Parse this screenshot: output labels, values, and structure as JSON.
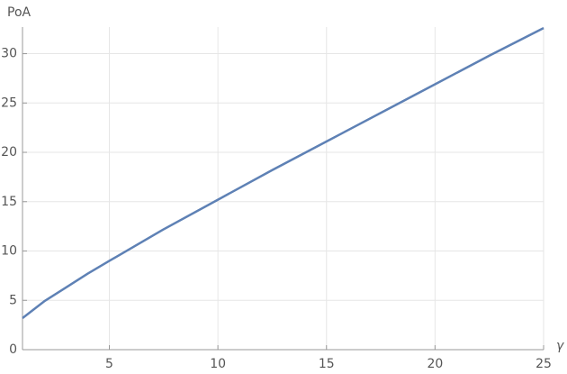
{
  "chart_data": {
    "type": "line",
    "y_label": "PoA",
    "x_label": "γ",
    "x": [
      1,
      2,
      3,
      4,
      5,
      7.5,
      10,
      12.5,
      15,
      17.5,
      20,
      22.5,
      25
    ],
    "series": [
      {
        "color": "#5e81b5",
        "values": [
          3.2,
          4.9,
          6.3,
          7.7,
          9.0,
          12.2,
          15.2,
          18.2,
          21.1,
          24.0,
          26.9,
          29.8,
          32.6
        ]
      }
    ],
    "xlim": [
      1,
      25
    ],
    "ylim": [
      0,
      32.7
    ],
    "xticks": [
      5,
      10,
      15,
      20,
      25
    ],
    "yticks": [
      0,
      5,
      10,
      15,
      20,
      25,
      30
    ],
    "grid": true
  }
}
